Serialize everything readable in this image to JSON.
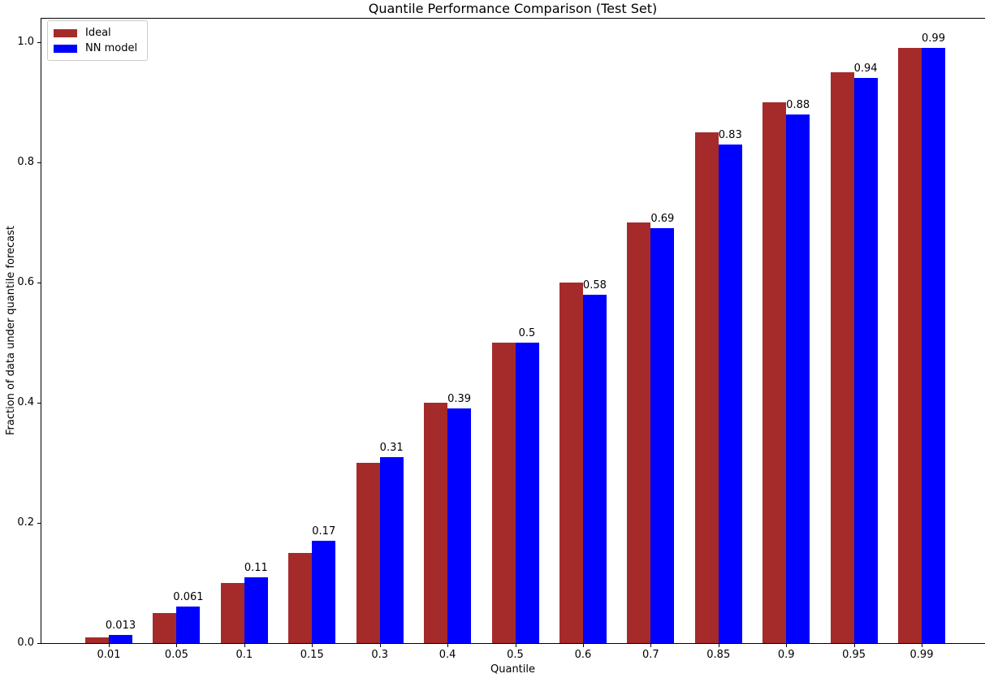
{
  "chart_data": {
    "type": "bar",
    "title": "Quantile Performance Comparison (Test Set)",
    "xlabel": "Quantile",
    "ylabel": "Fraction of data under quantile forecast",
    "categories": [
      "0.01",
      "0.05",
      "0.1",
      "0.15",
      "0.3",
      "0.4",
      "0.5",
      "0.6",
      "0.7",
      "0.85",
      "0.9",
      "0.95",
      "0.99"
    ],
    "series": [
      {
        "name": "Ideal",
        "color": "#A52A2A",
        "values": [
          0.01,
          0.05,
          0.1,
          0.15,
          0.3,
          0.4,
          0.5,
          0.6,
          0.7,
          0.85,
          0.9,
          0.95,
          0.99
        ]
      },
      {
        "name": "NN model",
        "color": "#0000FF",
        "values": [
          0.013,
          0.061,
          0.11,
          0.17,
          0.31,
          0.39,
          0.5,
          0.58,
          0.69,
          0.83,
          0.88,
          0.94,
          0.99
        ],
        "value_labels": [
          "0.013",
          "0.061",
          "0.11",
          "0.17",
          "0.31",
          "0.39",
          "0.5",
          "0.58",
          "0.69",
          "0.83",
          "0.88",
          "0.94",
          "0.99"
        ]
      }
    ],
    "yticks": [
      "0.0",
      "0.2",
      "0.4",
      "0.6",
      "0.8",
      "1.0"
    ],
    "ylim": [
      0,
      1.04
    ],
    "grid": false,
    "legend_position": "upper left",
    "background_color": "#ffffff",
    "spine_color": "#000000",
    "legend_border_color": "#cccccc"
  }
}
